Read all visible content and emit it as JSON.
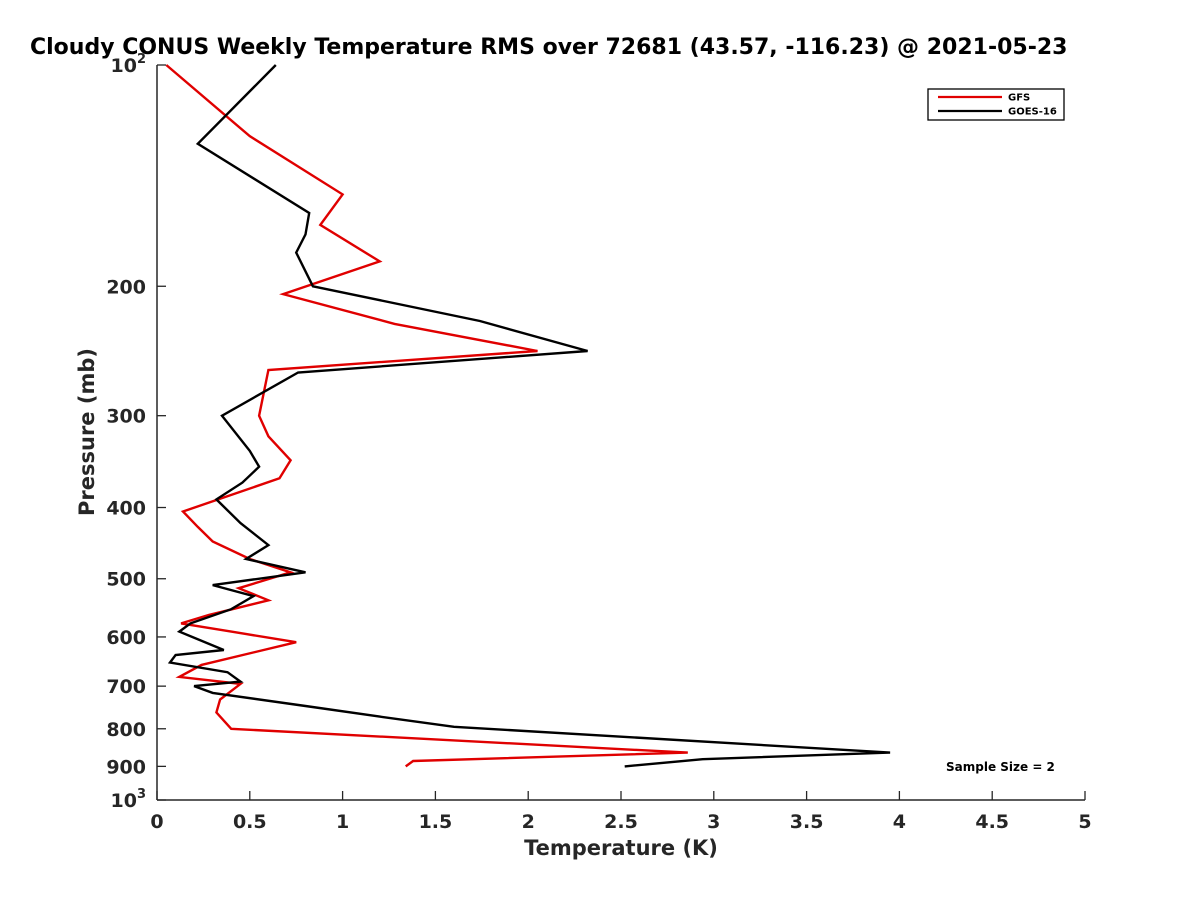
{
  "chart_data": {
    "type": "line",
    "title": "Cloudy CONUS Weekly Temperature RMS over 72681 (43.57, -116.23) @ 2021-05-23",
    "xlabel": "Temperature (K)",
    "ylabel": "Pressure (mb)",
    "xlim": [
      0,
      5
    ],
    "ylim": [
      100,
      1000
    ],
    "y_scale": "log",
    "y_reversed": true,
    "x_ticks": [
      "0",
      "0.5",
      "1",
      "1.5",
      "2",
      "2.5",
      "3",
      "3.5",
      "4",
      "4.5",
      "5"
    ],
    "y_ticks": [
      {
        "value": 100,
        "base": "10",
        "exp": "2"
      },
      {
        "value": 200,
        "label": "200"
      },
      {
        "value": 300,
        "label": "300"
      },
      {
        "value": 400,
        "label": "400"
      },
      {
        "value": 500,
        "label": "500"
      },
      {
        "value": 600,
        "label": "600"
      },
      {
        "value": 700,
        "label": "700"
      },
      {
        "value": 800,
        "label": "800"
      },
      {
        "value": 900,
        "label": "900"
      },
      {
        "value": 1000,
        "base": "10",
        "exp": "3"
      }
    ],
    "grid": false,
    "legend_position": "top-right",
    "annotation": "Sample Size = 2",
    "series": [
      {
        "name": "GFS",
        "color": "#e00000",
        "points": [
          [
            0.05,
            100
          ],
          [
            0.5,
            125
          ],
          [
            1.0,
            150
          ],
          [
            0.88,
            165
          ],
          [
            1.2,
            185
          ],
          [
            0.68,
            205
          ],
          [
            1.28,
            225
          ],
          [
            2.05,
            245
          ],
          [
            0.6,
            260
          ],
          [
            0.55,
            300
          ],
          [
            0.6,
            320
          ],
          [
            0.72,
            345
          ],
          [
            0.66,
            365
          ],
          [
            0.14,
            405
          ],
          [
            0.22,
            425
          ],
          [
            0.3,
            445
          ],
          [
            0.5,
            470
          ],
          [
            0.72,
            490
          ],
          [
            0.44,
            515
          ],
          [
            0.6,
            535
          ],
          [
            0.28,
            560
          ],
          [
            0.13,
            575
          ],
          [
            0.4,
            590
          ],
          [
            0.75,
            610
          ],
          [
            0.24,
            655
          ],
          [
            0.12,
            680
          ],
          [
            0.45,
            695
          ],
          [
            0.34,
            730
          ],
          [
            0.32,
            760
          ],
          [
            0.4,
            800
          ],
          [
            2.86,
            862
          ],
          [
            1.38,
            885
          ],
          [
            1.34,
            900
          ]
        ]
      },
      {
        "name": "GOES-16",
        "color": "#000000",
        "points": [
          [
            0.64,
            100
          ],
          [
            0.22,
            128
          ],
          [
            0.82,
            159
          ],
          [
            0.8,
            170
          ],
          [
            0.75,
            180
          ],
          [
            0.84,
            200
          ],
          [
            1.74,
            223
          ],
          [
            2.32,
            245
          ],
          [
            0.76,
            262
          ],
          [
            0.35,
            300
          ],
          [
            0.5,
            335
          ],
          [
            0.55,
            352
          ],
          [
            0.46,
            370
          ],
          [
            0.32,
            390
          ],
          [
            0.45,
            420
          ],
          [
            0.6,
            450
          ],
          [
            0.48,
            470
          ],
          [
            0.8,
            490
          ],
          [
            0.3,
            510
          ],
          [
            0.52,
            528
          ],
          [
            0.4,
            550
          ],
          [
            0.18,
            575
          ],
          [
            0.12,
            590
          ],
          [
            0.36,
            625
          ],
          [
            0.1,
            635
          ],
          [
            0.07,
            650
          ],
          [
            0.38,
            670
          ],
          [
            0.45,
            690
          ],
          [
            0.2,
            700
          ],
          [
            0.3,
            715
          ],
          [
            0.8,
            745
          ],
          [
            1.2,
            770
          ],
          [
            1.6,
            795
          ],
          [
            3.95,
            862
          ],
          [
            2.94,
            880
          ],
          [
            2.52,
            900
          ]
        ]
      }
    ]
  }
}
